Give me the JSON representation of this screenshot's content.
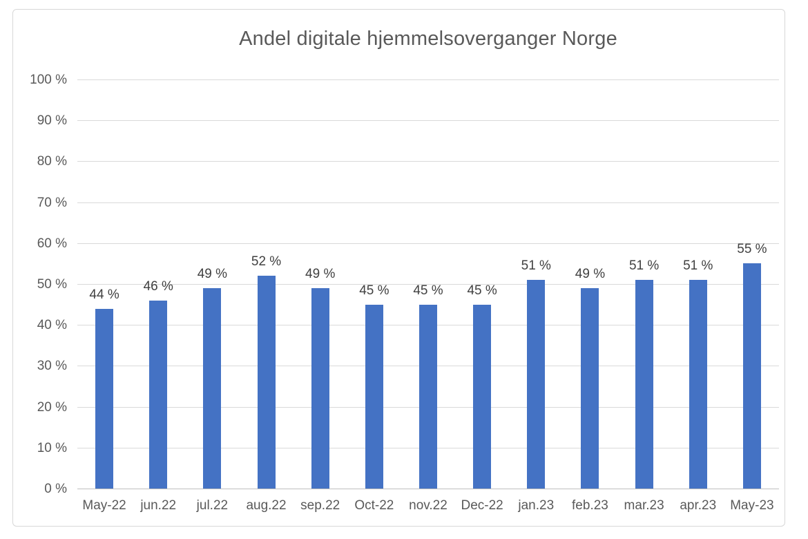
{
  "chart_data": {
    "type": "bar",
    "title": "Andel digitale hjemmelsoverganger Norge",
    "categories": [
      "May-22",
      "jun.22",
      "jul.22",
      "aug.22",
      "sep.22",
      "Oct-22",
      "nov.22",
      "Dec-22",
      "jan.23",
      "feb.23",
      "mar.23",
      "apr.23",
      "May-23"
    ],
    "values": [
      44,
      46,
      49,
      52,
      49,
      45,
      45,
      45,
      51,
      49,
      51,
      51,
      55
    ],
    "data_labels": [
      "44 %",
      "46 %",
      "49 %",
      "52 %",
      "49 %",
      "45 %",
      "45 %",
      "45 %",
      "51 %",
      "49 %",
      "51 %",
      "51 %",
      "55 %"
    ],
    "y_ticks": [
      "0 %",
      "10 %",
      "20 %",
      "30 %",
      "40 %",
      "50 %",
      "60 %",
      "70 %",
      "80 %",
      "90 %",
      "100 %"
    ],
    "ylim": [
      0,
      100
    ],
    "y_step": 10,
    "xlabel": "",
    "ylabel": "",
    "grid": true,
    "legend": "none",
    "colors": {
      "bar": "#4472C4",
      "gridline": "#d9d9d9",
      "axis_line": "#bfbfbf",
      "tick_text": "#595959",
      "data_label_text": "#404040",
      "title_text": "#595959",
      "frame_border": "#d7d7d7",
      "background": "#ffffff"
    }
  }
}
